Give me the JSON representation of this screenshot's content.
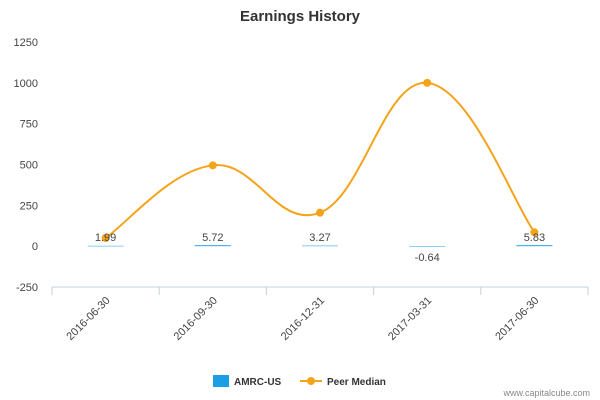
{
  "chart_data": {
    "type": "line",
    "title": "Earnings History",
    "categories": [
      "2016-06-30",
      "2016-09-30",
      "2016-12-31",
      "2017-03-31",
      "2017-06-30"
    ],
    "ylim": [
      -250,
      1250
    ],
    "yticks": [
      -250,
      0,
      250,
      500,
      750,
      1000,
      1250
    ],
    "grid": false,
    "legend_position": "bottom-center",
    "series": [
      {
        "name": "AMRC-US",
        "type": "bar",
        "color": "#1a9ee6",
        "values": [
          1.99,
          5.72,
          3.27,
          -0.64,
          5.83
        ],
        "labels": [
          "1.99",
          "5.72",
          "3.27",
          "-0.64",
          "5.83"
        ]
      },
      {
        "name": "Peer Median",
        "type": "line",
        "color": "#f5a31a",
        "values": [
          50,
          495,
          205,
          1000,
          85
        ]
      }
    ],
    "credit": "www.capitalcube.com"
  }
}
